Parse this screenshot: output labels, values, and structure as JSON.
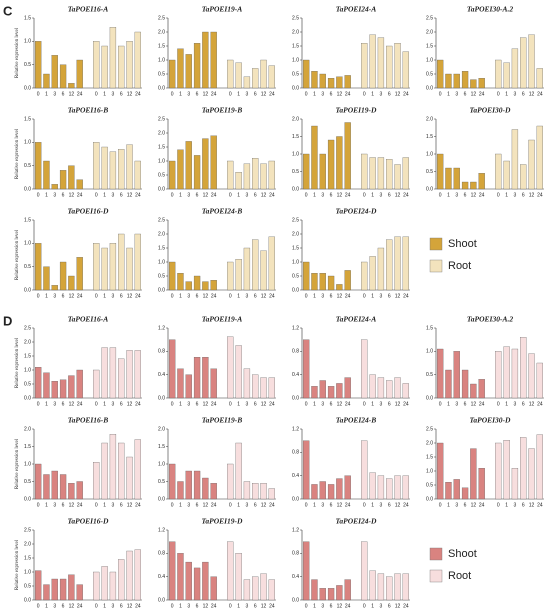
{
  "panels": [
    {
      "label": "C",
      "legend": [
        {
          "name": "Shoot",
          "color": "#d4a43a"
        },
        {
          "name": "Root",
          "color": "#f3e3bd"
        }
      ]
    },
    {
      "label": "D",
      "legend": [
        {
          "name": "Shoot",
          "color": "#d98380"
        },
        {
          "name": "Root",
          "color": "#f7dede"
        }
      ]
    }
  ],
  "chart_data": [
    {
      "type": "bar",
      "title": "TaPOEI16-A",
      "ylabel": "Relative expression level",
      "categories": [
        "0",
        "1",
        "3",
        "6",
        "12",
        "24"
      ],
      "series": [
        {
          "values": [
            1.0,
            0.3,
            0.7,
            0.5,
            0.1,
            0.6
          ]
        },
        {
          "values": [
            1.0,
            0.9,
            1.3,
            0.9,
            1.0,
            1.2
          ]
        }
      ],
      "ylim": [
        0,
        1.5
      ],
      "yticks": [
        {
          "value": 0,
          "label": "0.0"
        },
        0.5,
        {
          "value": 1,
          "label": "1.0"
        },
        1.5
      ]
    },
    {
      "type": "bar",
      "title": "TaPOEI19-A",
      "categories": [
        "0",
        "1",
        "3",
        "6",
        "12",
        "24"
      ],
      "series": [
        {
          "values": [
            1.0,
            1.4,
            1.2,
            1.6,
            2.0,
            2.0
          ]
        },
        {
          "values": [
            1.0,
            0.9,
            0.4,
            0.7,
            1.0,
            0.8
          ]
        }
      ],
      "ylim": [
        0,
        2.5
      ],
      "yticks": [
        {
          "value": 0,
          "label": "0.0"
        },
        0.5,
        {
          "value": 1,
          "label": "1.0"
        },
        1.5,
        {
          "value": 2,
          "label": "2.0"
        },
        2.5
      ]
    },
    {
      "type": "bar",
      "title": "TaPOEI24-A",
      "categories": [
        "0",
        "1",
        "3",
        "6",
        "12",
        "24"
      ],
      "series": [
        {
          "values": [
            1.0,
            0.6,
            0.5,
            0.35,
            0.4,
            0.45
          ]
        },
        {
          "values": [
            1.6,
            1.9,
            1.8,
            1.5,
            1.6,
            1.3
          ]
        }
      ],
      "ylim": [
        0,
        2.5
      ],
      "yticks": [
        {
          "value": 0,
          "label": "0.0"
        },
        0.5,
        {
          "value": 1,
          "label": "1.0"
        },
        1.5,
        {
          "value": 2,
          "label": "2.0"
        },
        2.5
      ]
    },
    {
      "type": "bar",
      "title": "TaPOEI30-A.2",
      "categories": [
        "0",
        "1",
        "3",
        "6",
        "12",
        "24"
      ],
      "series": [
        {
          "values": [
            1.0,
            0.5,
            0.5,
            0.6,
            0.3,
            0.35
          ]
        },
        {
          "values": [
            1.0,
            0.9,
            1.4,
            1.8,
            1.9,
            0.7
          ]
        }
      ],
      "ylim": [
        0,
        2.5
      ],
      "yticks": [
        {
          "value": 0,
          "label": "0.0"
        },
        0.5,
        {
          "value": 1,
          "label": "1.0"
        },
        1.5,
        {
          "value": 2,
          "label": "2.0"
        },
        2.5
      ]
    },
    {
      "type": "bar",
      "title": "TaPOEI16-B",
      "ylabel": "Relative expression level",
      "categories": [
        "0",
        "1",
        "3",
        "6",
        "12",
        "24"
      ],
      "series": [
        {
          "values": [
            1.0,
            0.6,
            0.1,
            0.4,
            0.5,
            0.2
          ]
        },
        {
          "values": [
            1.0,
            0.9,
            0.8,
            0.85,
            0.95,
            0.6
          ]
        }
      ],
      "ylim": [
        0,
        1.5
      ],
      "yticks": [
        {
          "value": 0,
          "label": "0.0"
        },
        0.5,
        {
          "value": 1,
          "label": "1.0"
        },
        1.5
      ]
    },
    {
      "type": "bar",
      "title": "TaPOEI19-B",
      "categories": [
        "0",
        "1",
        "3",
        "6",
        "12",
        "24"
      ],
      "series": [
        {
          "values": [
            1.0,
            1.4,
            1.7,
            1.2,
            1.8,
            1.9
          ]
        },
        {
          "values": [
            1.0,
            0.6,
            0.9,
            1.1,
            0.9,
            1.0
          ]
        }
      ],
      "ylim": [
        0,
        2.5
      ],
      "yticks": [
        {
          "value": 0,
          "label": "0.0"
        },
        0.5,
        {
          "value": 1,
          "label": "1.0"
        },
        1.5,
        {
          "value": 2,
          "label": "2.0"
        },
        2.5
      ]
    },
    {
      "type": "bar",
      "title": "TaPOEI19-D",
      "categories": [
        "0",
        "1",
        "3",
        "6",
        "12",
        "24"
      ],
      "series": [
        {
          "values": [
            1.0,
            1.8,
            1.0,
            1.4,
            1.5,
            1.9
          ]
        },
        {
          "values": [
            1.0,
            0.9,
            0.9,
            0.85,
            0.7,
            0.9
          ]
        }
      ],
      "ylim": [
        0,
        2
      ],
      "yticks": [
        {
          "value": 0,
          "label": "0.0"
        },
        0.5,
        {
          "value": 1,
          "label": "1.0"
        },
        1.5,
        {
          "value": 2,
          "label": "2.0"
        }
      ]
    },
    {
      "type": "bar",
      "title": "TaPOEI30-D",
      "categories": [
        "0",
        "1",
        "3",
        "6",
        "12",
        "24"
      ],
      "series": [
        {
          "values": [
            1.0,
            0.6,
            0.6,
            0.2,
            0.2,
            0.45
          ]
        },
        {
          "values": [
            1.0,
            0.8,
            1.7,
            0.7,
            1.4,
            1.8
          ]
        }
      ],
      "ylim": [
        0,
        2
      ],
      "yticks": [
        {
          "value": 0,
          "label": "0.0"
        },
        0.5,
        {
          "value": 1,
          "label": "1.0"
        },
        1.5,
        {
          "value": 2,
          "label": "2.0"
        }
      ]
    },
    {
      "type": "bar",
      "title": "TaPOEI16-D",
      "ylabel": "Relative expression level",
      "categories": [
        "0",
        "1",
        "3",
        "6",
        "12",
        "24"
      ],
      "series": [
        {
          "values": [
            1.0,
            0.5,
            0.1,
            0.6,
            0.3,
            0.7
          ]
        },
        {
          "values": [
            1.0,
            0.9,
            1.0,
            1.2,
            0.9,
            1.2
          ]
        }
      ],
      "ylim": [
        0,
        1.5
      ],
      "yticks": [
        {
          "value": 0,
          "label": "0.0"
        },
        0.5,
        {
          "value": 1,
          "label": "1.0"
        },
        1.5
      ]
    },
    {
      "type": "bar",
      "title": "TaPOEI24-B",
      "categories": [
        "0",
        "1",
        "3",
        "6",
        "12",
        "24"
      ],
      "series": [
        {
          "values": [
            1.0,
            0.6,
            0.3,
            0.5,
            0.3,
            0.35
          ]
        },
        {
          "values": [
            1.0,
            1.1,
            1.5,
            1.8,
            1.4,
            1.9
          ]
        }
      ],
      "ylim": [
        0,
        2.5
      ],
      "yticks": [
        {
          "value": 0,
          "label": "0.0"
        },
        0.5,
        {
          "value": 1,
          "label": "1.0"
        },
        1.5,
        {
          "value": 2,
          "label": "2.0"
        },
        2.5
      ]
    },
    {
      "type": "bar",
      "title": "TaPOEI24-D",
      "categories": [
        "0",
        "1",
        "3",
        "6",
        "12",
        "24"
      ],
      "series": [
        {
          "values": [
            1.0,
            0.6,
            0.6,
            0.5,
            0.2,
            0.7
          ]
        },
        {
          "values": [
            1.0,
            1.2,
            1.5,
            1.8,
            1.9,
            1.9
          ]
        }
      ],
      "ylim": [
        0,
        2.5
      ],
      "yticks": [
        {
          "value": 0,
          "label": "0.0"
        },
        0.5,
        {
          "value": 1,
          "label": "1.0"
        },
        1.5,
        {
          "value": 2,
          "label": "2.0"
        },
        2.5
      ]
    },
    {
      "type": "bar",
      "title": "TaPOEI16-A",
      "ylabel": "Relative expression level",
      "categories": [
        "0",
        "1",
        "3",
        "6",
        "12",
        "24"
      ],
      "series": [
        {
          "values": [
            1.1,
            0.9,
            0.6,
            0.65,
            0.8,
            1.0
          ]
        },
        {
          "values": [
            1.0,
            1.8,
            1.8,
            1.4,
            1.7,
            1.7
          ]
        }
      ],
      "ylim": [
        0,
        2.5
      ],
      "yticks": [
        {
          "value": 0,
          "label": "0.0"
        },
        0.5,
        {
          "value": 1,
          "label": "1.0"
        },
        1.5,
        {
          "value": 2,
          "label": "2.0"
        },
        2.5
      ]
    },
    {
      "type": "bar",
      "title": "TaPOEI19-A",
      "categories": [
        "0",
        "1",
        "3",
        "6",
        "12",
        "24"
      ],
      "series": [
        {
          "values": [
            1.0,
            0.5,
            0.4,
            0.7,
            0.7,
            0.5
          ]
        },
        {
          "values": [
            1.05,
            0.9,
            0.5,
            0.4,
            0.35,
            0.35
          ]
        }
      ],
      "ylim": [
        0,
        1.2
      ],
      "yticks": [
        {
          "value": 0,
          "label": "0.0"
        },
        0.4,
        0.8,
        1.2
      ]
    },
    {
      "type": "bar",
      "title": "TaPOEI24-A",
      "categories": [
        "0",
        "1",
        "3",
        "6",
        "12",
        "24"
      ],
      "series": [
        {
          "values": [
            1.0,
            0.2,
            0.3,
            0.2,
            0.25,
            0.35
          ]
        },
        {
          "values": [
            1.0,
            0.4,
            0.35,
            0.3,
            0.35,
            0.25
          ]
        }
      ],
      "ylim": [
        0,
        1.2
      ],
      "yticks": [
        {
          "value": 0,
          "label": "0.0"
        },
        0.4,
        0.8,
        1.2
      ]
    },
    {
      "type": "bar",
      "title": "TaPOEI30-A.2",
      "categories": [
        "0",
        "1",
        "3",
        "6",
        "12",
        "24"
      ],
      "series": [
        {
          "values": [
            1.05,
            0.6,
            1.0,
            0.6,
            0.3,
            0.4
          ]
        },
        {
          "values": [
            1.0,
            1.1,
            1.05,
            1.3,
            0.95,
            0.75
          ]
        }
      ],
      "ylim": [
        0,
        1.5
      ],
      "yticks": [
        {
          "value": 0,
          "label": "0.0"
        },
        0.5,
        {
          "value": 1,
          "label": "1.0"
        },
        1.5
      ]
    },
    {
      "type": "bar",
      "title": "TaPOEI16-B",
      "ylabel": "Relative expression level",
      "categories": [
        "0",
        "1",
        "3",
        "6",
        "12",
        "24"
      ],
      "series": [
        {
          "values": [
            1.0,
            0.7,
            0.8,
            0.7,
            0.45,
            0.5
          ]
        },
        {
          "values": [
            1.05,
            1.6,
            1.85,
            1.6,
            1.2,
            1.7
          ]
        }
      ],
      "ylim": [
        0,
        2
      ],
      "yticks": [
        {
          "value": 0,
          "label": "0.0"
        },
        0.5,
        {
          "value": 1,
          "label": "1.0"
        },
        1.5,
        {
          "value": 2,
          "label": "2.0"
        }
      ]
    },
    {
      "type": "bar",
      "title": "TaPOEI19-B",
      "categories": [
        "0",
        "1",
        "3",
        "6",
        "12",
        "24"
      ],
      "series": [
        {
          "values": [
            1.0,
            0.5,
            0.8,
            0.8,
            0.6,
            0.45
          ]
        },
        {
          "values": [
            1.0,
            1.6,
            0.5,
            0.45,
            0.45,
            0.3
          ]
        }
      ],
      "ylim": [
        0,
        2
      ],
      "yticks": [
        {
          "value": 0,
          "label": "0.0"
        },
        0.5,
        {
          "value": 1,
          "label": "1.0"
        },
        1.5,
        {
          "value": 2,
          "label": "2.0"
        }
      ]
    },
    {
      "type": "bar",
      "title": "TaPOEI24-B",
      "categories": [
        "0",
        "1",
        "3",
        "6",
        "12",
        "24"
      ],
      "series": [
        {
          "values": [
            1.0,
            0.25,
            0.3,
            0.25,
            0.35,
            0.4
          ]
        },
        {
          "values": [
            1.0,
            0.45,
            0.4,
            0.35,
            0.4,
            0.4
          ]
        }
      ],
      "ylim": [
        0,
        1.2
      ],
      "yticks": [
        {
          "value": 0,
          "label": "0.0"
        },
        0.4,
        0.8,
        1.2
      ]
    },
    {
      "type": "bar",
      "title": "TaPOEI30-D",
      "categories": [
        "0",
        "1",
        "3",
        "6",
        "12",
        "24"
      ],
      "series": [
        {
          "values": [
            2.0,
            0.6,
            0.7,
            0.4,
            1.8,
            1.1
          ]
        },
        {
          "values": [
            2.0,
            2.1,
            1.1,
            2.2,
            1.8,
            2.3
          ]
        }
      ],
      "ylim": [
        0,
        2.5
      ],
      "yticks": [
        {
          "value": 0,
          "label": "0.0"
        },
        0.5,
        {
          "value": 1,
          "label": "1.0"
        },
        1.5,
        {
          "value": 2,
          "label": "2.0"
        },
        2.5
      ]
    },
    {
      "type": "bar",
      "title": "TaPOEI16-D",
      "ylabel": "Relative expression level",
      "categories": [
        "0",
        "1",
        "3",
        "6",
        "12",
        "24"
      ],
      "series": [
        {
          "values": [
            1.05,
            0.55,
            0.75,
            0.75,
            0.9,
            0.55
          ]
        },
        {
          "values": [
            1.0,
            1.2,
            1.0,
            1.45,
            1.75,
            1.8
          ]
        }
      ],
      "ylim": [
        0,
        2.5
      ],
      "yticks": [
        {
          "value": 0,
          "label": "0.0"
        },
        0.5,
        {
          "value": 1,
          "label": "1.0"
        },
        1.5,
        {
          "value": 2,
          "label": "2.0"
        },
        2.5
      ]
    },
    {
      "type": "bar",
      "title": "TaPOEI19-D",
      "categories": [
        "0",
        "1",
        "3",
        "6",
        "12",
        "24"
      ],
      "series": [
        {
          "values": [
            1.0,
            0.8,
            0.65,
            0.55,
            0.65,
            0.4
          ]
        },
        {
          "values": [
            1.0,
            0.8,
            0.35,
            0.4,
            0.45,
            0.35
          ]
        }
      ],
      "ylim": [
        0,
        1.2
      ],
      "yticks": [
        {
          "value": 0,
          "label": "0.0"
        },
        0.4,
        0.8,
        1.2
      ]
    },
    {
      "type": "bar",
      "title": "TaPOEI24-D",
      "categories": [
        "0",
        "1",
        "3",
        "6",
        "12",
        "24"
      ],
      "series": [
        {
          "values": [
            1.0,
            0.35,
            0.2,
            0.2,
            0.25,
            0.35
          ]
        },
        {
          "values": [
            1.0,
            0.5,
            0.45,
            0.4,
            0.45,
            0.45
          ]
        }
      ],
      "ylim": [
        0,
        1.2
      ],
      "yticks": [
        {
          "value": 0,
          "label": "0.0"
        },
        0.4,
        0.8,
        1.2
      ]
    }
  ]
}
